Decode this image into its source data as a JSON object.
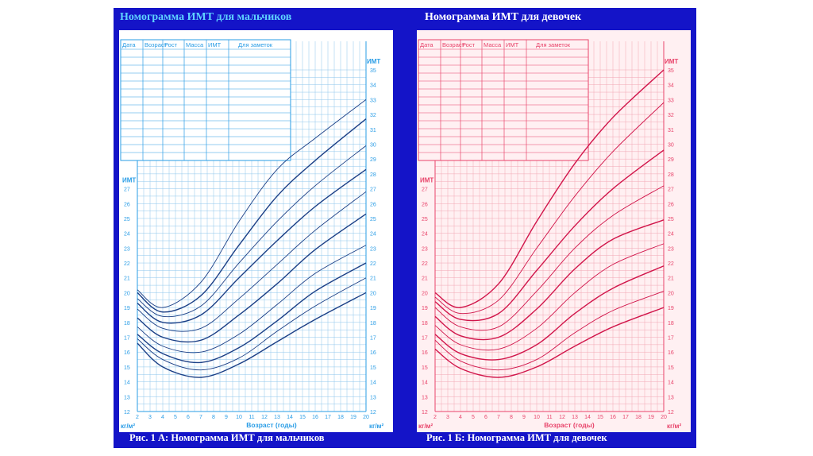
{
  "panels": {
    "boys": {
      "title": "Номограмма ИМТ для мальчиков",
      "caption": "Рис. 1 А: Номограмма ИМТ для мальчиков",
      "table_headers": [
        "Дата",
        "Возраст",
        "Рост",
        "Масса",
        "ИМТ",
        "Для заметок"
      ],
      "colors": {
        "background": "#ffffff",
        "grid": "#8ec6ec",
        "accent": "#2a9de6",
        "curve": "#1b3f86"
      }
    },
    "girls": {
      "title": "Номограмма ИМТ для девочек",
      "caption": "Рис. 1 Б: Номограмма ИМТ для девочек",
      "table_headers": [
        "Дата",
        "Возраст",
        "Рост",
        "Масса",
        "ИМТ",
        "Для заметок"
      ],
      "colors": {
        "background": "#fff0f2",
        "grid": "#f2a6b4",
        "accent": "#e8436a",
        "curve": "#d1164b"
      }
    }
  },
  "slide_background": "#1414c8",
  "chart_data": [
    {
      "type": "line",
      "panel": "boys",
      "title": "Номограмма ИМТ для мальчиков",
      "xlabel": "Возраст (годы)",
      "ylabel": "ИМТ",
      "unit_label": "кг/м²",
      "xlim": [
        2,
        20
      ],
      "ylim": [
        12,
        35
      ],
      "lower_ylim": [
        12,
        27
      ],
      "x_ticks": [
        2,
        3,
        4,
        5,
        6,
        7,
        8,
        9,
        10,
        11,
        12,
        13,
        14,
        15,
        16,
        17,
        18,
        19,
        20
      ],
      "grid": true,
      "x": [
        2,
        4,
        7,
        10,
        13,
        16,
        20
      ],
      "series": [
        {
          "values": [
            16.6,
            15.0,
            14.3,
            15.2,
            16.7,
            18.2,
            20.0
          ]
        },
        {
          "values": [
            16.9,
            15.5,
            14.8,
            15.6,
            17.4,
            19.1,
            21.0
          ]
        },
        {
          "values": [
            17.2,
            15.9,
            15.3,
            16.3,
            18.1,
            20.1,
            22.0
          ]
        },
        {
          "values": [
            17.7,
            16.4,
            16.0,
            17.2,
            19.2,
            21.3,
            23.2
          ]
        },
        {
          "values": [
            18.3,
            17.0,
            16.8,
            18.5,
            20.6,
            22.9,
            25.3
          ]
        },
        {
          "values": [
            18.9,
            17.6,
            17.6,
            19.6,
            21.9,
            24.2,
            26.8
          ]
        },
        {
          "values": [
            19.3,
            18.0,
            18.5,
            21.0,
            23.5,
            25.8,
            28.3
          ]
        },
        {
          "values": [
            19.6,
            18.4,
            19.1,
            22.0,
            24.8,
            27.2,
            29.9
          ]
        },
        {
          "values": [
            20.0,
            18.7,
            19.8,
            23.2,
            26.5,
            28.9,
            31.7
          ]
        },
        {
          "values": [
            20.2,
            19.0,
            20.7,
            24.8,
            28.3,
            30.4,
            33.0
          ]
        }
      ]
    },
    {
      "type": "line",
      "panel": "girls",
      "title": "Номограмма ИМТ для девочек",
      "xlabel": "Возраст (годы)",
      "ylabel": "ИМТ",
      "unit_label": "кг/м²",
      "xlim": [
        2,
        20
      ],
      "ylim": [
        12,
        35
      ],
      "lower_ylim": [
        12,
        27
      ],
      "x_ticks": [
        2,
        3,
        4,
        5,
        6,
        7,
        8,
        9,
        10,
        11,
        12,
        13,
        14,
        15,
        16,
        17,
        18,
        19,
        20
      ],
      "grid": true,
      "x": [
        2,
        4,
        7,
        10,
        13,
        16,
        20
      ],
      "series": [
        {
          "values": [
            16.2,
            14.9,
            14.3,
            15.0,
            16.4,
            17.7,
            19.0
          ]
        },
        {
          "values": [
            16.8,
            15.4,
            14.8,
            15.5,
            17.3,
            18.8,
            20.1
          ]
        },
        {
          "values": [
            17.2,
            15.9,
            15.5,
            16.5,
            18.6,
            20.3,
            21.8
          ]
        },
        {
          "values": [
            17.8,
            16.5,
            16.2,
            17.6,
            20.0,
            21.9,
            23.3
          ]
        },
        {
          "values": [
            18.4,
            17.1,
            17.0,
            18.9,
            21.6,
            23.6,
            24.9
          ]
        },
        {
          "values": [
            19.0,
            17.7,
            17.7,
            20.1,
            23.0,
            25.2,
            27.2
          ]
        },
        {
          "values": [
            19.4,
            18.2,
            18.6,
            21.5,
            24.5,
            27.0,
            29.6
          ]
        },
        {
          "values": [
            19.7,
            18.6,
            19.5,
            23.0,
            26.5,
            29.5,
            32.8
          ]
        },
        {
          "values": [
            20.0,
            19.0,
            20.6,
            24.8,
            28.7,
            31.8,
            35.0
          ]
        }
      ]
    }
  ]
}
